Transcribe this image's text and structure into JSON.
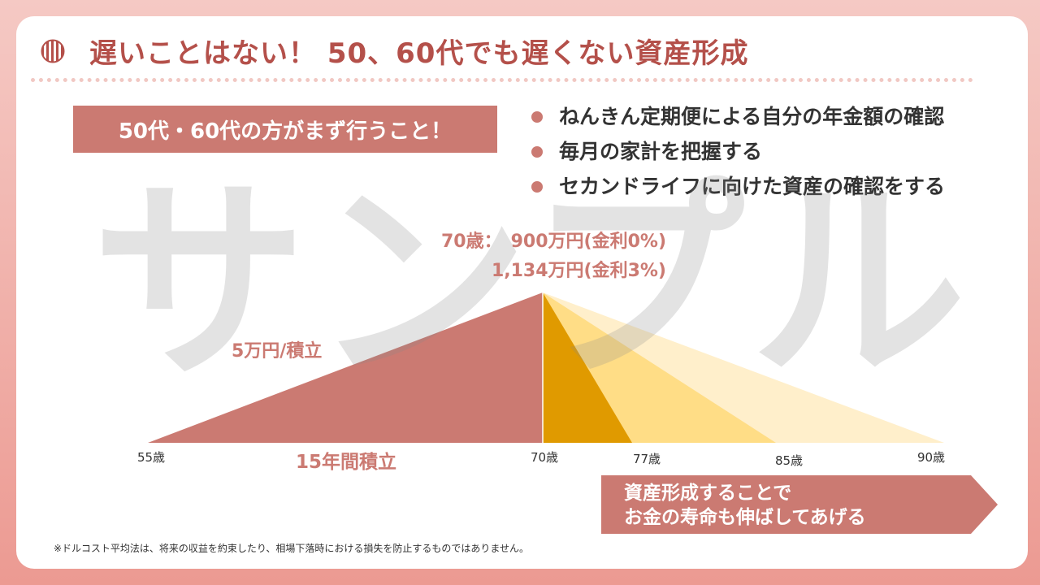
{
  "title": "遅いことはない！ 50、60代でも遅くない資産形成",
  "box_label": "50代・60代の方がまず行うこと！",
  "bullets": [
    "ねんきん定期便による自分の年金額の確認",
    "毎月の家計を把握する",
    "セカンドライフに向けた資産の確認をする"
  ],
  "watermark": "サンプル",
  "diagram": {
    "peak_label_1": "70歳：　900万円(金利0%)",
    "peak_label_2": "1,134万円(金利3%)",
    "contribution_label": "5万円/積立",
    "period_label": "15年間積立",
    "age_labels": [
      "55歳",
      "70歳",
      "77歳",
      "85歳",
      "90歳"
    ]
  },
  "arrow": {
    "line1": "資産形成することで",
    "line2": "お金の寿命も伸ばしてあげる"
  },
  "footnote": "※ドルコスト平均法は、将来の収益を約束したり、相場下落時における損失を防止するものではありません。",
  "colors": {
    "accent": "#cb7a72",
    "title": "#b4504a",
    "gold_dark": "#e09a00",
    "gold_mid": "#ffd97a",
    "gold_light": "#ffecc2"
  }
}
